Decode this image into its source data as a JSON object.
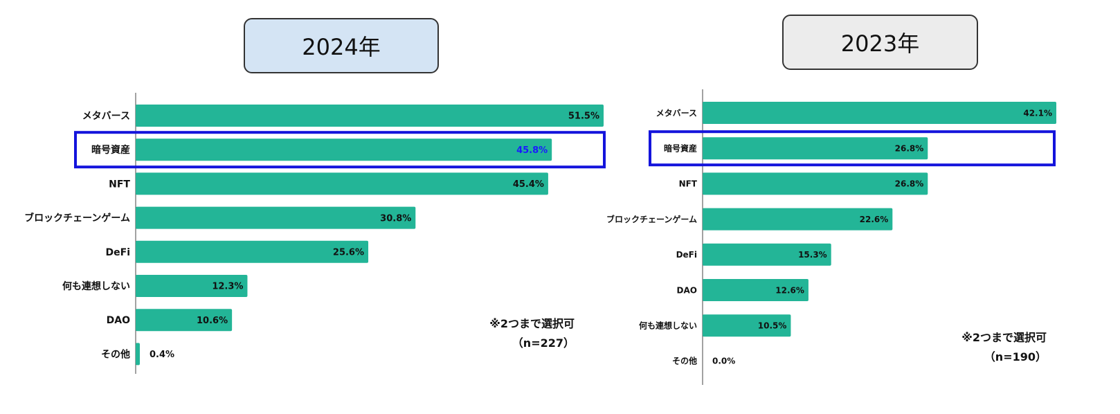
{
  "chart_data": [
    {
      "type": "bar",
      "orientation": "horizontal",
      "title": "2024年",
      "categories": [
        "メタバース",
        "暗号資産",
        "NFT",
        "ブロックチェーンゲーム",
        "DeFi",
        "何も連想しない",
        "DAO",
        "その他"
      ],
      "values": [
        51.5,
        45.8,
        45.4,
        30.8,
        25.6,
        12.3,
        10.6,
        0.4
      ],
      "value_labels": [
        "51.5%",
        "45.8%",
        "45.4%",
        "30.8%",
        "25.6%",
        "12.3%",
        "10.6%",
        "0.4%"
      ],
      "highlight": "暗号資産",
      "note": "※2つまで選択可",
      "sample": "（n=227）",
      "xlim": [
        0,
        51.5
      ],
      "grid": false
    },
    {
      "type": "bar",
      "orientation": "horizontal",
      "title": "2023年",
      "categories": [
        "メタバース",
        "暗号資産",
        "NFT",
        "ブロックチェーンゲーム",
        "DeFi",
        "DAO",
        "何も連想しない",
        "その他"
      ],
      "values": [
        42.1,
        26.8,
        26.8,
        22.6,
        15.3,
        12.6,
        10.5,
        0.0
      ],
      "value_labels": [
        "42.1%",
        "26.8%",
        "26.8%",
        "22.6%",
        "15.3%",
        "12.6%",
        "10.5%",
        "0.0%"
      ],
      "highlight": "暗号資産",
      "note": "※2つまで選択可",
      "sample": "（n=190）",
      "xlim": [
        0,
        42.1
      ],
      "grid": false
    }
  ],
  "colors": {
    "bar": "#23b597",
    "highlight_frame": "#1414dc",
    "highlight_value_text": "#1a1aff",
    "title_bg_2024": "#d4e4f4",
    "title_bg_2023": "#ececec"
  }
}
